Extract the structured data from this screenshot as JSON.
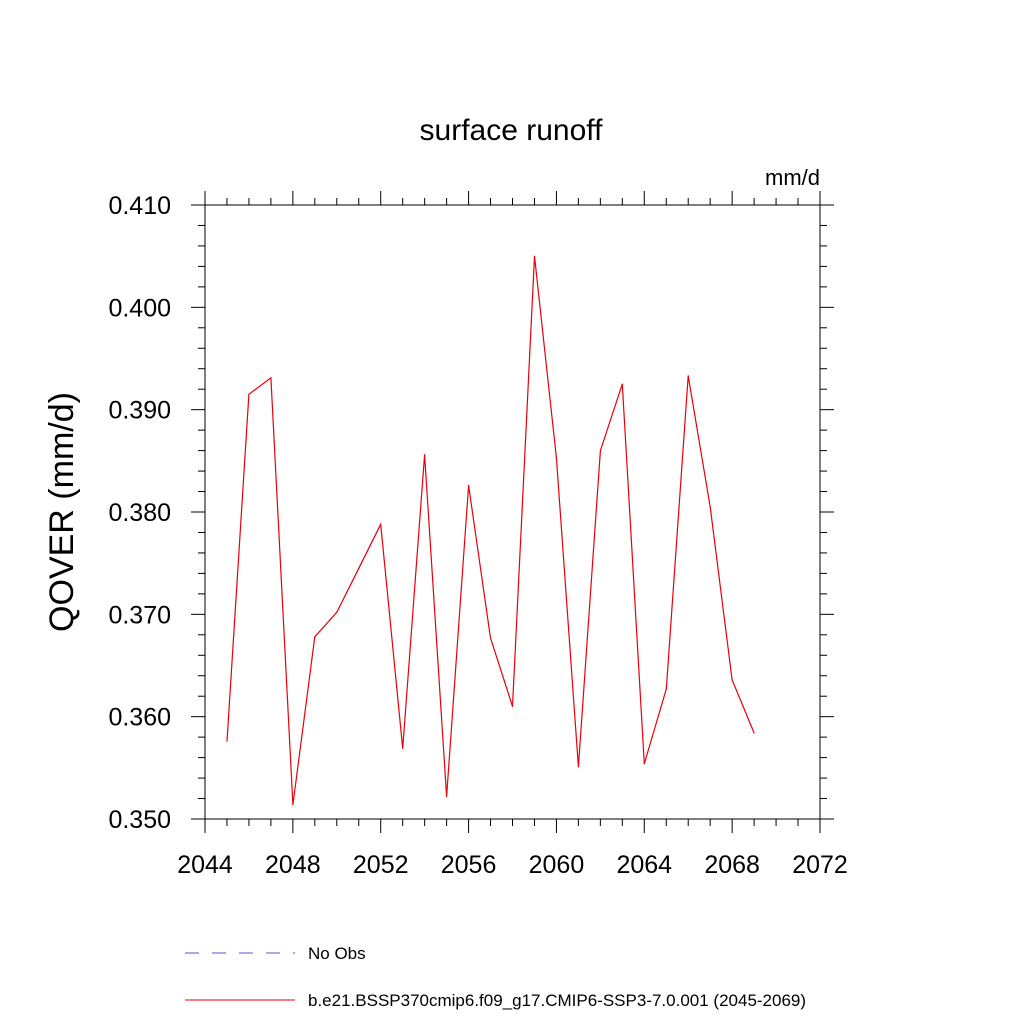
{
  "chart_data": {
    "type": "line",
    "title": "surface runoff",
    "units": "mm/d",
    "ylabel": "QOVER  (mm/d)",
    "xlabel": "",
    "xlim": [
      2044,
      2072
    ],
    "ylim": [
      0.35,
      0.41
    ],
    "xticks": [
      2044,
      2048,
      2052,
      2056,
      2060,
      2064,
      2068,
      2072
    ],
    "xtick_labels": [
      "2044",
      "2048",
      "2052",
      "2056",
      "2060",
      "2064",
      "2068",
      "2072"
    ],
    "yticks": [
      0.35,
      0.36,
      0.37,
      0.38,
      0.39,
      0.4,
      0.41
    ],
    "ytick_labels": [
      "0.350",
      "0.360",
      "0.370",
      "0.380",
      "0.390",
      "0.400",
      "0.410"
    ],
    "grid": false,
    "legend_position": "bottom",
    "legend": [
      {
        "label": "No Obs",
        "color": "#5a50c8",
        "style": "dashed"
      },
      {
        "label": "b.e21.BSSP370cmip6.f09_g17.CMIP6-SSP3-7.0.001 (2045-2069)",
        "color": "#e8000b",
        "style": "solid"
      }
    ],
    "series": [
      {
        "color": "#e8000b",
        "x": [
          2045,
          2046,
          2047,
          2048,
          2049,
          2050,
          2051,
          2052,
          2053,
          2054,
          2055,
          2056,
          2057,
          2058,
          2059,
          2060,
          2061,
          2062,
          2063,
          2064,
          2065,
          2066,
          2067,
          2068,
          2069
        ],
        "values": [
          0.3576,
          0.3915,
          0.3931,
          0.3514,
          0.3678,
          0.3702,
          0.3745,
          0.3788,
          0.3569,
          0.3856,
          0.3522,
          0.3826,
          0.3677,
          0.361,
          0.405,
          0.3853,
          0.3551,
          0.386,
          0.3925,
          0.3554,
          0.3627,
          0.3933,
          0.3805,
          0.3636,
          0.3584
        ]
      }
    ]
  }
}
